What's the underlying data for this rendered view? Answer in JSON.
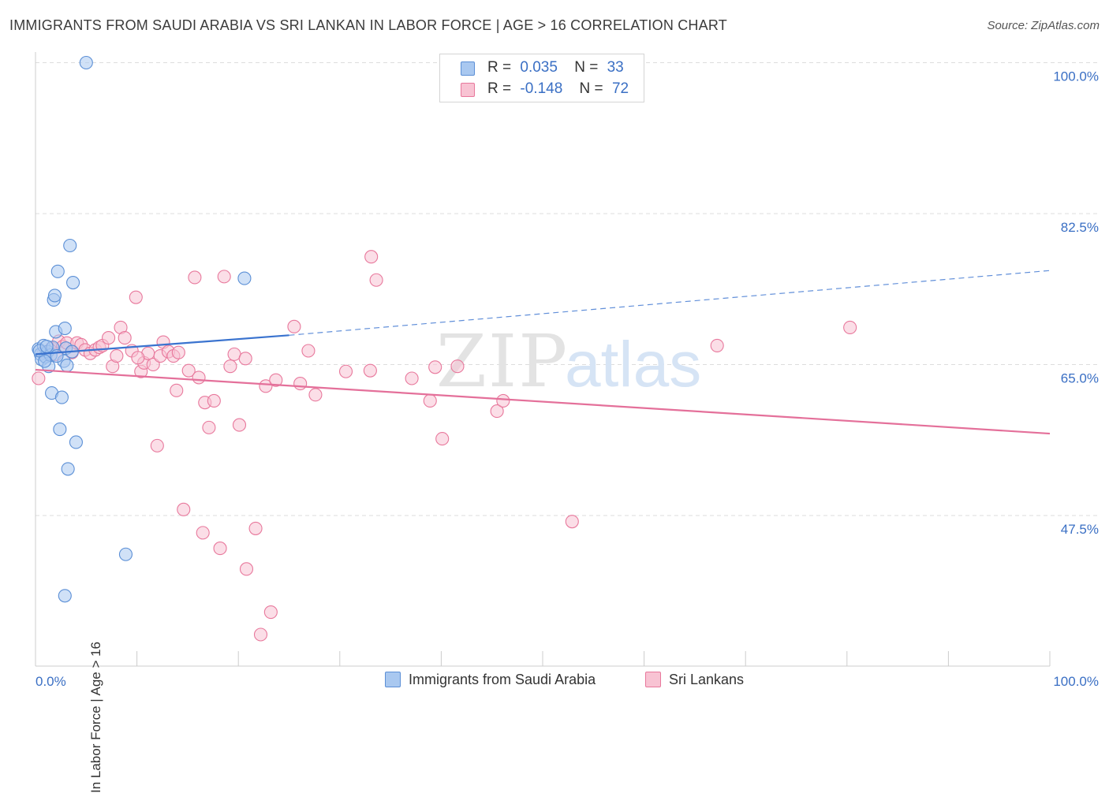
{
  "title": "IMMIGRANTS FROM SAUDI ARABIA VS SRI LANKAN IN LABOR FORCE | AGE > 16 CORRELATION CHART",
  "source": "Source: ZipAtlas.com",
  "legend_top": {
    "rows": [
      {
        "r_label": "R =",
        "r_value": "0.035",
        "n_label": "N =",
        "n_value": "33"
      },
      {
        "r_label": "R =",
        "r_value": "-0.148",
        "n_label": "N =",
        "n_value": "72"
      }
    ]
  },
  "legend_bottom": [
    "Immigrants from Saudi Arabia",
    "Sri Lankans"
  ],
  "watermark": {
    "zip": "ZIP",
    "atlas": "atlas"
  },
  "colors": {
    "blue_fill": "#a9c8f0",
    "blue_stroke": "#5b8fd6",
    "blue_line": "#3a73cf",
    "pink_fill": "#f8c3d3",
    "pink_stroke": "#e8789c",
    "pink_line": "#e4709a",
    "axis_text": "#3a6fc4",
    "grid": "#dddddd"
  },
  "chart_data": {
    "type": "scatter",
    "title": "IMMIGRANTS FROM SAUDI ARABIA VS SRI LANKAN IN LABOR FORCE | AGE > 16 CORRELATION CHART",
    "xlabel": "",
    "ylabel": "In Labor Force | Age > 16",
    "xlim": [
      0,
      100
    ],
    "ylim": [
      31,
      102
    ],
    "x_tick_labels": [
      "0.0%",
      "100.0%"
    ],
    "y_ticks": [
      47.5,
      65.0,
      82.5,
      100.0
    ],
    "y_tick_labels": [
      "47.5%",
      "65.0%",
      "82.5%",
      "100.0%"
    ],
    "series": [
      {
        "name": "Immigrants from Saudi Arabia",
        "color": "#a9c8f0",
        "r": 0.035,
        "n": 33,
        "trend": {
          "x": [
            0,
            25
          ],
          "y": [
            66.2,
            68.4
          ],
          "dashed_to": {
            "x": 100,
            "y": 75.9
          }
        },
        "points": [
          [
            0.3,
            66.8
          ],
          [
            0.5,
            66.2
          ],
          [
            0.6,
            65.6
          ],
          [
            0.8,
            67.2
          ],
          [
            1.0,
            65.9
          ],
          [
            1.2,
            66.5
          ],
          [
            1.3,
            64.8
          ],
          [
            1.5,
            66.1
          ],
          [
            1.7,
            67.0
          ],
          [
            1.8,
            72.5
          ],
          [
            1.9,
            73.0
          ],
          [
            2.0,
            68.8
          ],
          [
            1.6,
            61.7
          ],
          [
            2.2,
            75.8
          ],
          [
            2.4,
            57.5
          ],
          [
            2.6,
            61.2
          ],
          [
            2.8,
            65.4
          ],
          [
            3.0,
            66.9
          ],
          [
            2.9,
            69.2
          ],
          [
            3.1,
            64.9
          ],
          [
            3.4,
            78.8
          ],
          [
            3.6,
            66.5
          ],
          [
            3.7,
            74.5
          ],
          [
            3.2,
            52.9
          ],
          [
            4.0,
            56.0
          ],
          [
            5.0,
            100.0
          ],
          [
            8.9,
            43.0
          ],
          [
            2.9,
            38.2
          ],
          [
            20.6,
            75.0
          ],
          [
            0.4,
            66.6
          ],
          [
            1.1,
            67.1
          ],
          [
            0.9,
            65.4
          ],
          [
            2.1,
            66.0
          ]
        ]
      },
      {
        "name": "Sri Lankans",
        "color": "#f8c3d3",
        "r": -0.148,
        "n": 72,
        "trend": {
          "x": [
            0,
            100
          ],
          "y": [
            64.4,
            57.0
          ]
        },
        "points": [
          [
            0.3,
            63.4
          ],
          [
            0.8,
            66.4
          ],
          [
            1.6,
            66.9
          ],
          [
            2.0,
            66.2
          ],
          [
            2.3,
            67.7
          ],
          [
            2.7,
            67.1
          ],
          [
            3.1,
            67.5
          ],
          [
            3.6,
            66.4
          ],
          [
            4.1,
            67.5
          ],
          [
            4.5,
            67.3
          ],
          [
            4.9,
            66.7
          ],
          [
            5.4,
            66.3
          ],
          [
            5.9,
            66.7
          ],
          [
            6.3,
            67.0
          ],
          [
            6.6,
            67.2
          ],
          [
            7.2,
            68.1
          ],
          [
            7.6,
            64.8
          ],
          [
            8.0,
            66.0
          ],
          [
            8.4,
            69.3
          ],
          [
            8.8,
            68.1
          ],
          [
            9.5,
            66.6
          ],
          [
            9.9,
            72.8
          ],
          [
            10.4,
            64.2
          ],
          [
            10.7,
            65.2
          ],
          [
            11.1,
            66.3
          ],
          [
            11.6,
            65.0
          ],
          [
            12.0,
            55.6
          ],
          [
            12.3,
            66.0
          ],
          [
            12.6,
            67.6
          ],
          [
            13.1,
            66.5
          ],
          [
            13.6,
            66.0
          ],
          [
            14.1,
            66.4
          ],
          [
            14.6,
            48.2
          ],
          [
            15.1,
            64.3
          ],
          [
            15.7,
            75.1
          ],
          [
            16.1,
            63.5
          ],
          [
            16.7,
            60.6
          ],
          [
            17.1,
            57.7
          ],
          [
            17.6,
            60.8
          ],
          [
            18.6,
            75.2
          ],
          [
            19.2,
            64.8
          ],
          [
            19.6,
            66.2
          ],
          [
            20.1,
            58.0
          ],
          [
            20.7,
            65.7
          ],
          [
            21.7,
            46.0
          ],
          [
            22.7,
            62.5
          ],
          [
            23.7,
            63.2
          ],
          [
            25.5,
            69.4
          ],
          [
            26.1,
            62.8
          ],
          [
            26.9,
            66.6
          ],
          [
            27.6,
            61.5
          ],
          [
            23.2,
            36.3
          ],
          [
            22.2,
            33.7
          ],
          [
            20.8,
            41.3
          ],
          [
            18.2,
            43.7
          ],
          [
            16.5,
            45.5
          ],
          [
            30.6,
            64.2
          ],
          [
            33.0,
            64.3
          ],
          [
            33.1,
            77.5
          ],
          [
            33.6,
            74.8
          ],
          [
            37.1,
            63.4
          ],
          [
            38.9,
            60.8
          ],
          [
            39.4,
            64.7
          ],
          [
            40.1,
            56.4
          ],
          [
            41.6,
            64.8
          ],
          [
            45.5,
            59.6
          ],
          [
            46.1,
            60.8
          ],
          [
            52.9,
            46.8
          ],
          [
            67.2,
            67.2
          ],
          [
            80.3,
            69.3
          ],
          [
            13.9,
            62.0
          ],
          [
            10.1,
            65.8
          ]
        ]
      }
    ]
  }
}
